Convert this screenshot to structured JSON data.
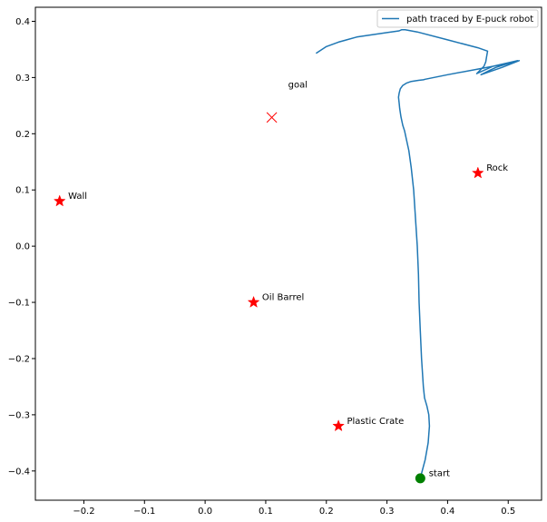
{
  "chart_data": {
    "type": "line",
    "xlim": [
      -0.28,
      0.555
    ],
    "ylim": [
      -0.452,
      0.425
    ],
    "xticks": [
      -0.2,
      -0.1,
      0.0,
      0.1,
      0.2,
      0.3,
      0.4,
      0.5
    ],
    "xtick_labels": [
      "−0.2",
      "−0.1",
      "0.0",
      "0.1",
      "0.2",
      "0.3",
      "0.4",
      "0.5"
    ],
    "yticks": [
      -0.4,
      -0.3,
      -0.2,
      -0.1,
      0.0,
      0.1,
      0.2,
      0.3,
      0.4
    ],
    "ytick_labels": [
      "−0.4",
      "−0.3",
      "−0.2",
      "−0.1",
      "0.0",
      "0.1",
      "0.2",
      "0.3",
      "0.4"
    ],
    "grid": false,
    "legend": {
      "placement": "top-right",
      "entries": [
        "path traced by E-puck robot"
      ]
    },
    "series": [
      {
        "name": "path traced by E-puck robot",
        "color": "#1f77b4",
        "x": [
          0.355,
          0.358,
          0.363,
          0.368,
          0.37,
          0.369,
          0.366,
          0.362,
          0.36,
          0.357,
          0.355,
          0.353,
          0.352,
          0.35,
          0.347,
          0.344,
          0.34,
          0.336,
          0.332,
          0.329,
          0.326,
          0.323,
          0.321,
          0.32,
          0.319,
          0.32,
          0.322,
          0.326,
          0.332,
          0.34,
          0.352,
          0.36,
          0.363,
          0.4,
          0.45,
          0.485,
          0.518,
          0.49,
          0.455,
          0.47,
          0.48,
          0.515,
          0.475,
          0.448,
          0.46,
          0.463,
          0.464,
          0.466,
          0.45,
          0.4,
          0.35,
          0.33,
          0.324,
          0.32,
          0.3,
          0.25,
          0.22,
          0.2,
          0.183
        ],
        "y": [
          -0.413,
          -0.4,
          -0.38,
          -0.35,
          -0.32,
          -0.3,
          -0.285,
          -0.27,
          -0.25,
          -0.2,
          -0.15,
          -0.1,
          -0.05,
          0.0,
          0.05,
          0.1,
          0.14,
          0.17,
          0.19,
          0.205,
          0.215,
          0.23,
          0.245,
          0.255,
          0.265,
          0.272,
          0.28,
          0.286,
          0.29,
          0.293,
          0.295,
          0.296,
          0.297,
          0.305,
          0.315,
          0.322,
          0.33,
          0.318,
          0.305,
          0.313,
          0.318,
          0.33,
          0.32,
          0.307,
          0.32,
          0.328,
          0.335,
          0.347,
          0.353,
          0.367,
          0.381,
          0.385,
          0.385,
          0.383,
          0.38,
          0.372,
          0.363,
          0.355,
          0.343
        ]
      }
    ],
    "markers": [
      {
        "label": "goal",
        "shape": "x",
        "color": "#ff0000",
        "x": 0.11,
        "y": 0.229,
        "label_dx": 0.027,
        "label_dy": 0.053
      },
      {
        "label": "Wall",
        "shape": "star",
        "color": "#ff0000",
        "x": -0.24,
        "y": 0.08,
        "label_dx": 0.014,
        "label_dy": 0.004
      },
      {
        "label": "Rock",
        "shape": "star",
        "color": "#ff0000",
        "x": 0.45,
        "y": 0.13,
        "label_dx": 0.014,
        "label_dy": 0.004
      },
      {
        "label": "Oil Barrel",
        "shape": "star",
        "color": "#ff0000",
        "x": 0.08,
        "y": -0.1,
        "label_dx": 0.014,
        "label_dy": 0.004
      },
      {
        "label": "Plastic Crate",
        "shape": "star",
        "color": "#ff0000",
        "x": 0.22,
        "y": -0.32,
        "label_dx": 0.014,
        "label_dy": 0.004
      },
      {
        "label": "start",
        "shape": "circle",
        "color": "#008000",
        "x": 0.355,
        "y": -0.413,
        "label_dx": 0.014,
        "label_dy": 0.004
      }
    ]
  }
}
